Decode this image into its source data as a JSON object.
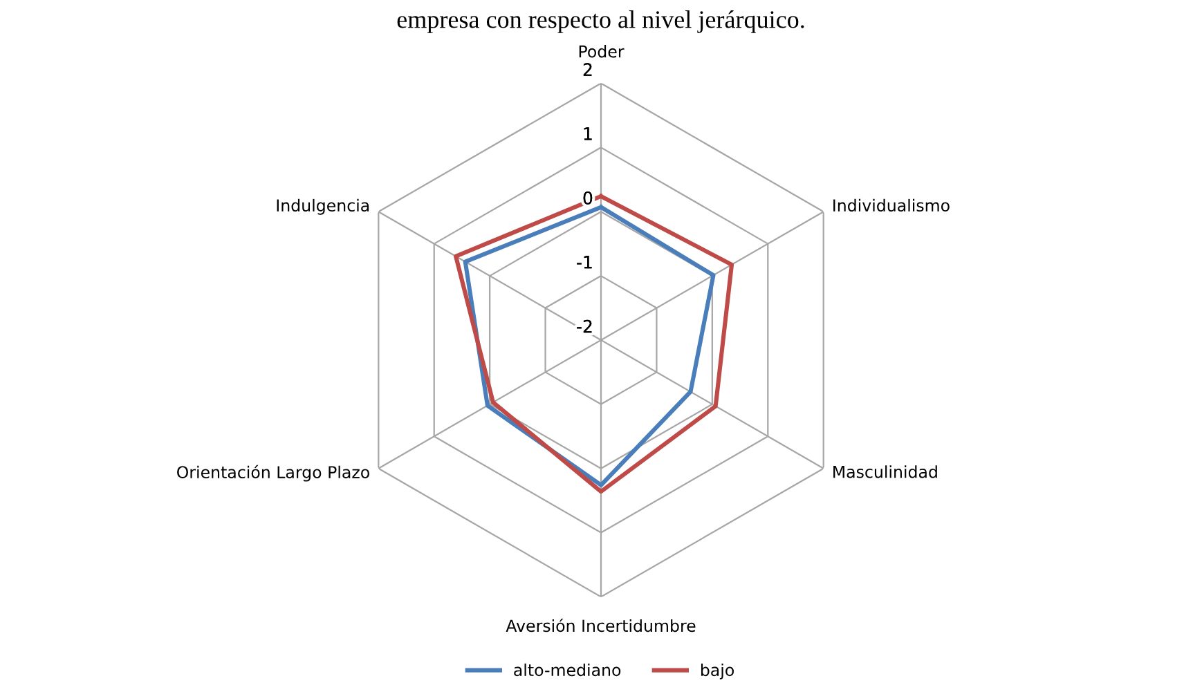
{
  "chart_data": {
    "type": "radar",
    "title": "empresa con respecto al nivel jerárquico.",
    "categories": [
      "Poder",
      "Individualismo",
      "Masculinidad",
      "Aversión Incertidumbre",
      "Orientación Largo Plazo",
      "Indulgencia"
    ],
    "ylim": [
      -2,
      2
    ],
    "yticks": [
      -2,
      -1,
      0,
      1,
      2
    ],
    "grid": true,
    "legend": "bottom",
    "marker": "none",
    "series": [
      {
        "name": "alto-mediano",
        "color": "#4a7ebb",
        "values": [
          0.07,
          0.02,
          -0.39,
          0.26,
          0.04,
          0.44
        ]
      },
      {
        "name": "bajo",
        "color": "#be4b48",
        "values": [
          0.24,
          0.35,
          0.06,
          0.36,
          -0.06,
          0.61
        ]
      }
    ]
  }
}
